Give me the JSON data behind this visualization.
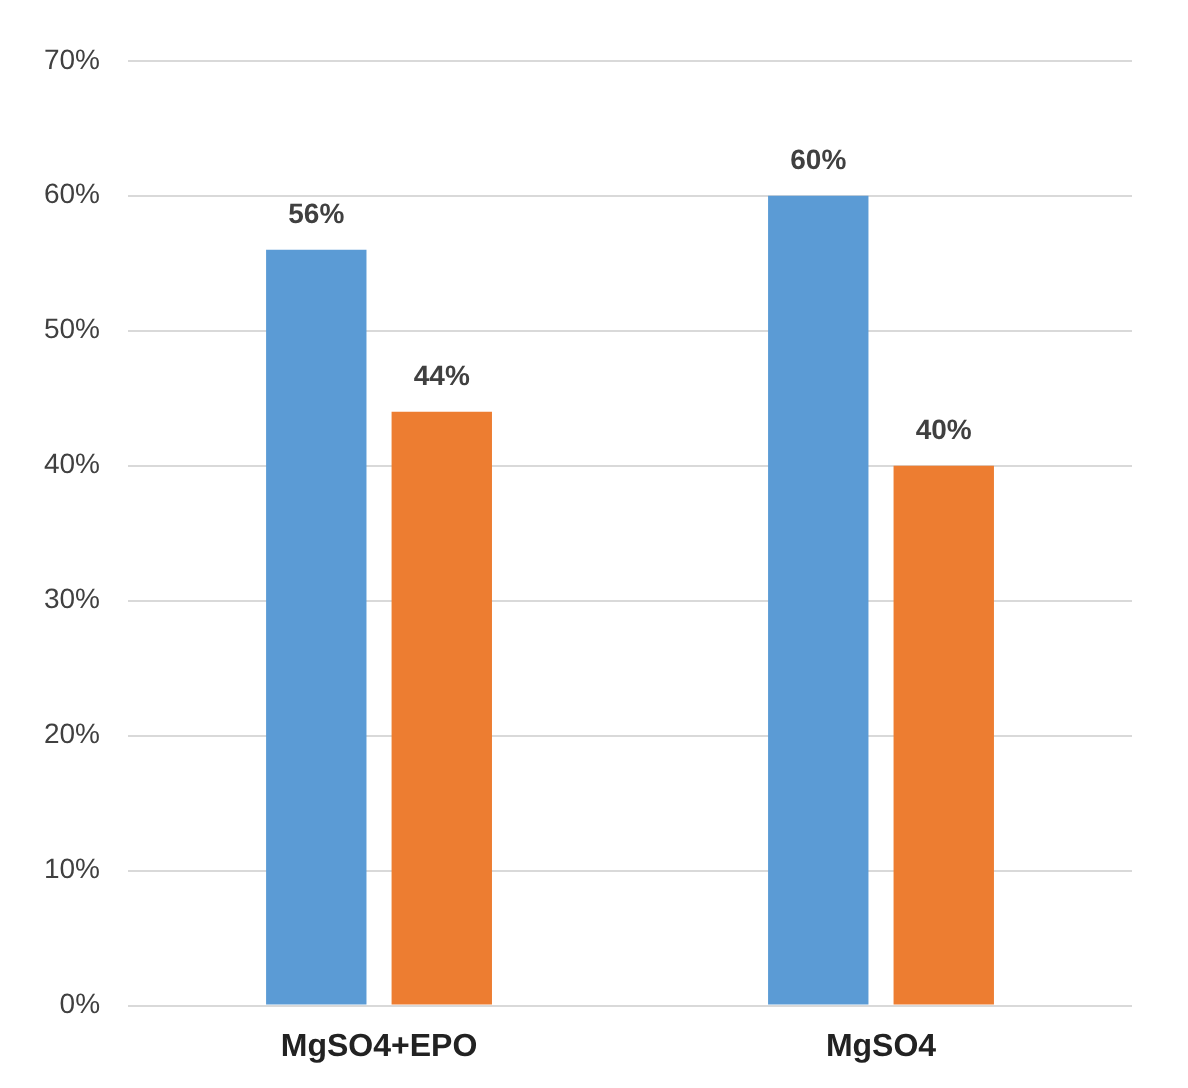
{
  "chart_data": {
    "type": "bar",
    "categories": [
      "MgSO4+EPO",
      "MgSO4"
    ],
    "series": [
      {
        "color": "#5b9bd5",
        "values": [
          56,
          60
        ],
        "value_labels": [
          "56%",
          "60%"
        ]
      },
      {
        "color": "#ed7d31",
        "values": [
          44,
          40
        ],
        "value_labels": [
          "44%",
          "40%"
        ]
      }
    ],
    "ylim": [
      0,
      70
    ],
    "yticks": [
      {
        "value": 0,
        "label": "0%"
      },
      {
        "value": 10,
        "label": "10%"
      },
      {
        "value": 20,
        "label": "20%"
      },
      {
        "value": 30,
        "label": "30%"
      },
      {
        "value": 40,
        "label": "40%"
      },
      {
        "value": 50,
        "label": "50%"
      },
      {
        "value": 60,
        "label": "60%"
      },
      {
        "value": 70,
        "label": "70%"
      }
    ],
    "grid": "y",
    "legend": false
  }
}
